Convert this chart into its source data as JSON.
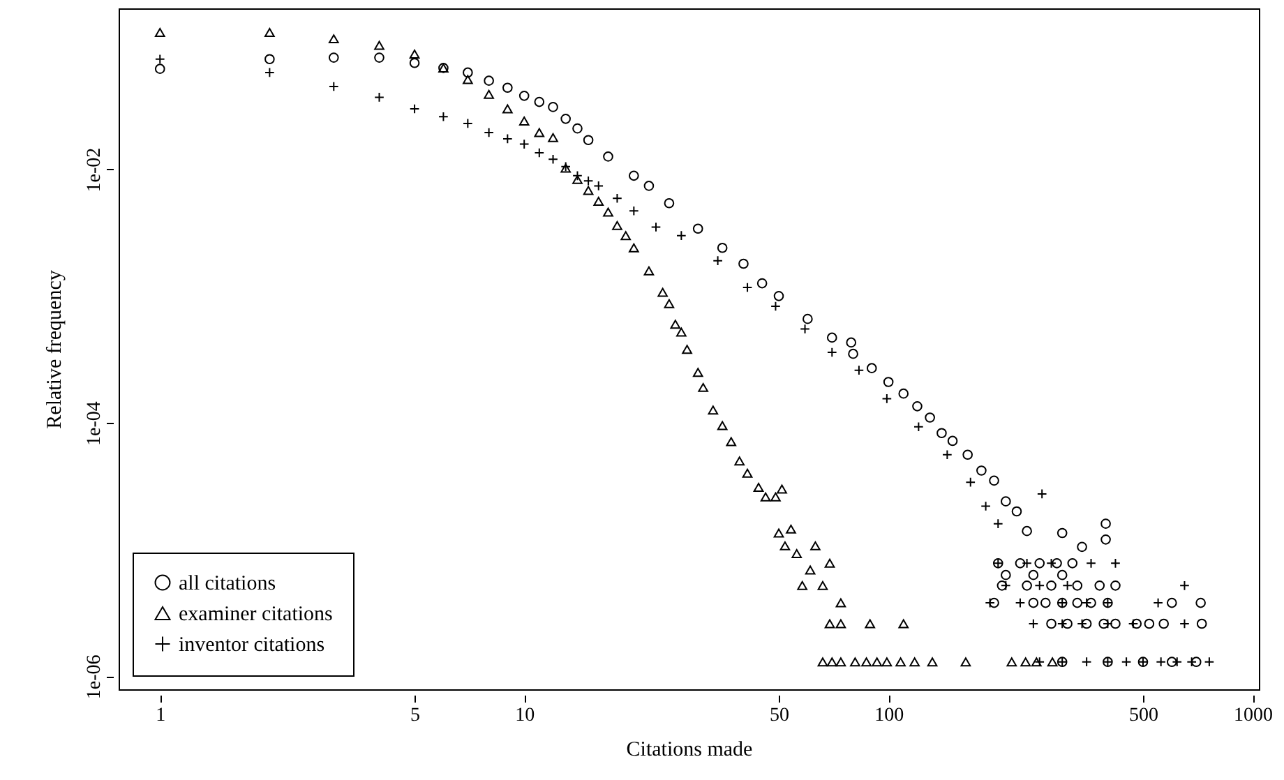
{
  "chart_data": {
    "type": "scatter",
    "xlabel": "Citations made",
    "ylabel": "Relative frequency",
    "log": "xy",
    "grid": false,
    "legend": "bottom left",
    "xlim": [
      0.77,
      1040
    ],
    "ylim": [
      7.9e-07,
      0.186
    ],
    "xticks": [
      1,
      5,
      10,
      50,
      100,
      500,
      1000
    ],
    "yticks": [
      {
        "value": 1e-06,
        "label": "1e-06"
      },
      {
        "value": 0.0001,
        "label": "1e-04"
      },
      {
        "value": 0.01,
        "label": "1e-02"
      }
    ],
    "series": [
      {
        "name": "all citations",
        "color": "#000000",
        "marker": "circle",
        "x": [
          1,
          2,
          3,
          4,
          5,
          6,
          7,
          8,
          9,
          10,
          11,
          12,
          13,
          14,
          15,
          17,
          20,
          22,
          25,
          30,
          35,
          40,
          45,
          50,
          60,
          70,
          79,
          80,
          90,
          100,
          110,
          120,
          130,
          140,
          150,
          165,
          180,
          195,
          210,
          225,
          240,
          395,
          395,
          300,
          340,
          200,
          230,
          260,
          290,
          320,
          210,
          250,
          300,
          205,
          240,
          280,
          330,
          380,
          420,
          195,
          250,
          270,
          300,
          330,
          360,
          400,
          600,
          720,
          280,
          310,
          350,
          390,
          420,
          480,
          520,
          570,
          725,
          300,
          400,
          500,
          600,
          700
        ],
        "values": [
          0.062,
          0.074,
          0.076,
          0.076,
          0.069,
          0.063,
          0.058,
          0.05,
          0.044,
          0.038,
          0.034,
          0.031,
          0.025,
          0.021,
          0.017,
          0.0126,
          0.0089,
          0.0074,
          0.0054,
          0.0034,
          0.0024,
          0.0018,
          0.00126,
          0.001,
          0.00066,
          0.00047,
          0.00043,
          0.00035,
          0.00027,
          0.00021,
          0.00017,
          0.000135,
          0.00011,
          8.3e-05,
          7.2e-05,
          5.6e-05,
          4.2e-05,
          3.5e-05,
          2.4e-05,
          2e-05,
          1.4e-05,
          1.6e-05,
          1.2e-05,
          1.35e-05,
          1.05e-05,
          7.8e-06,
          7.8e-06,
          7.8e-06,
          7.8e-06,
          7.8e-06,
          6.3e-06,
          6.3e-06,
          6.3e-06,
          5.2e-06,
          5.2e-06,
          5.2e-06,
          5.2e-06,
          5.2e-06,
          5.2e-06,
          3.8e-06,
          3.8e-06,
          3.8e-06,
          3.8e-06,
          3.8e-06,
          3.8e-06,
          3.8e-06,
          3.8e-06,
          3.8e-06,
          2.6e-06,
          2.6e-06,
          2.6e-06,
          2.6e-06,
          2.6e-06,
          2.6e-06,
          2.6e-06,
          2.6e-06,
          2.6e-06,
          1.3e-06,
          1.3e-06,
          1.3e-06,
          1.3e-06,
          1.3e-06
        ]
      },
      {
        "name": "examiner citations",
        "color": "#000000",
        "marker": "triangle",
        "x": [
          1,
          2,
          3,
          4,
          5,
          6,
          7,
          8,
          9,
          10,
          11,
          12,
          13,
          14,
          15,
          16,
          17,
          18,
          19,
          20,
          22,
          24,
          25,
          26,
          27,
          28,
          30,
          31,
          33,
          35,
          37,
          39,
          41,
          44,
          46,
          49,
          51,
          50,
          54,
          52,
          56,
          63,
          69,
          61,
          58,
          66,
          74,
          69,
          74,
          89,
          110,
          66,
          70,
          74,
          81,
          87,
          93,
          99,
          108,
          118,
          132,
          163,
          218,
          238,
          255,
          282
        ],
        "values": [
          0.12,
          0.12,
          0.107,
          0.095,
          0.081,
          0.063,
          0.051,
          0.039,
          0.03,
          0.024,
          0.0195,
          0.0178,
          0.0102,
          0.0083,
          0.0068,
          0.0056,
          0.0046,
          0.0036,
          0.003,
          0.0024,
          0.00158,
          0.00107,
          0.00087,
          0.0006,
          0.00052,
          0.00038,
          0.00025,
          0.00019,
          0.000126,
          9.5e-05,
          7.1e-05,
          5e-05,
          4e-05,
          3.1e-05,
          2.6e-05,
          2.6e-05,
          3e-05,
          1.35e-05,
          1.45e-05,
          1.07e-05,
          9.3e-06,
          1.07e-05,
          7.8e-06,
          6.9e-06,
          5.2e-06,
          5.2e-06,
          3.8e-06,
          2.6e-06,
          2.6e-06,
          2.6e-06,
          2.6e-06,
          1.3e-06,
          1.3e-06,
          1.3e-06,
          1.3e-06,
          1.3e-06,
          1.3e-06,
          1.3e-06,
          1.3e-06,
          1.3e-06,
          1.3e-06,
          1.3e-06,
          1.3e-06,
          1.3e-06,
          1.3e-06,
          1.3e-06
        ]
      },
      {
        "name": "inventor citations",
        "color": "#000000",
        "marker": "cross",
        "x": [
          1,
          2,
          3,
          4,
          5,
          6,
          7,
          8,
          9,
          10,
          11,
          12,
          13,
          14,
          15,
          16,
          18,
          20,
          23,
          27,
          34,
          41,
          49,
          59,
          70,
          83,
          99,
          121,
          145,
          168,
          185,
          200,
          264,
          200,
          240,
          280,
          360,
          420,
          210,
          260,
          310,
          650,
          190,
          230,
          300,
          350,
          400,
          550,
          250,
          300,
          340,
          400,
          470,
          650,
          260,
          300,
          350,
          400,
          450,
          500,
          560,
          620,
          680,
          760
        ],
        "values": [
          0.074,
          0.058,
          0.045,
          0.037,
          0.03,
          0.026,
          0.023,
          0.0195,
          0.0174,
          0.0158,
          0.0135,
          0.012,
          0.0105,
          0.0089,
          0.0081,
          0.0074,
          0.0059,
          0.0047,
          0.0035,
          0.003,
          0.0019,
          0.00117,
          0.00083,
          0.00055,
          0.00036,
          0.00026,
          0.000155,
          9.3e-05,
          5.6e-05,
          3.4e-05,
          2.2e-05,
          1.6e-05,
          2.75e-05,
          7.8e-06,
          7.8e-06,
          7.8e-06,
          7.8e-06,
          7.8e-06,
          5.2e-06,
          5.2e-06,
          5.2e-06,
          5.2e-06,
          3.8e-06,
          3.8e-06,
          3.8e-06,
          3.8e-06,
          3.8e-06,
          3.8e-06,
          2.6e-06,
          2.6e-06,
          2.6e-06,
          2.6e-06,
          2.6e-06,
          2.6e-06,
          1.3e-06,
          1.3e-06,
          1.3e-06,
          1.3e-06,
          1.3e-06,
          1.3e-06,
          1.3e-06,
          1.3e-06,
          1.3e-06,
          1.3e-06
        ]
      }
    ]
  }
}
